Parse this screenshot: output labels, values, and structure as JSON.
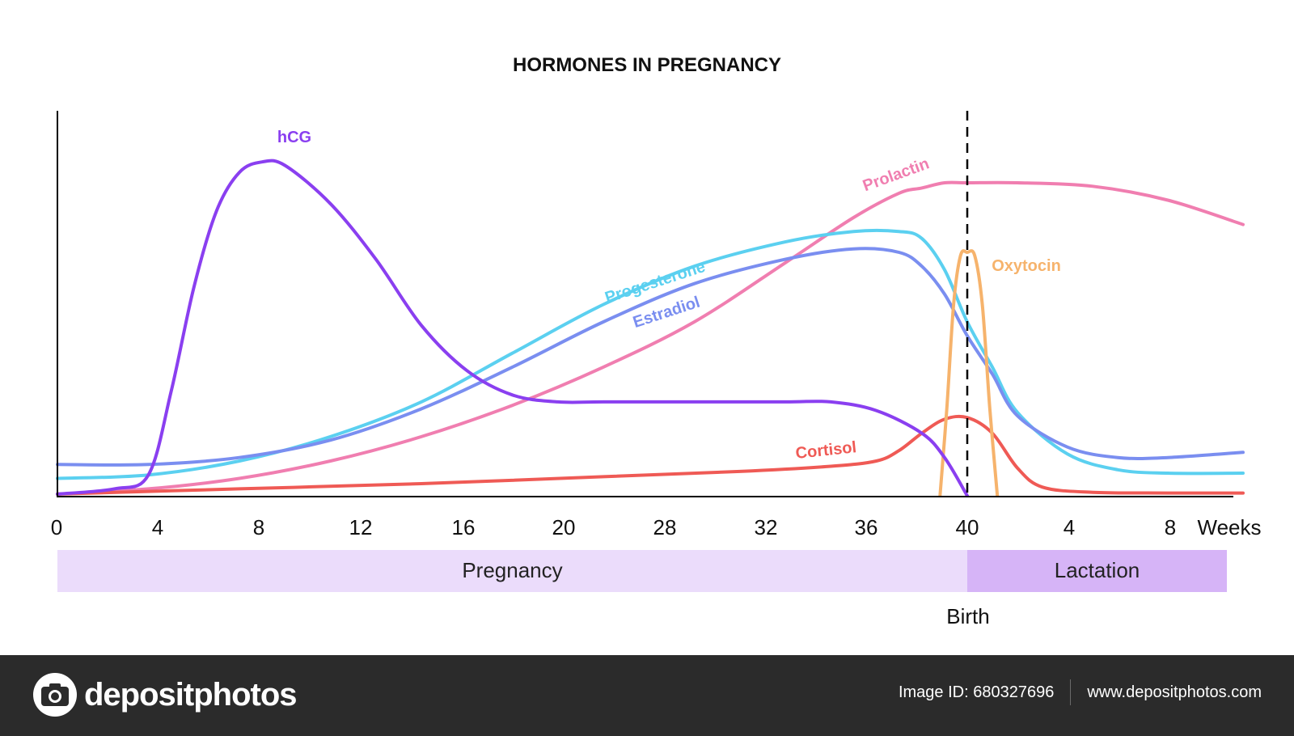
{
  "chart_data": {
    "type": "line",
    "title": "HORMONES IN PREGNANCY",
    "x_tick_labels": [
      "0",
      "4",
      "8",
      "12",
      "16",
      "20",
      "28",
      "32",
      "36",
      "40",
      "4",
      "8"
    ],
    "x_unit_label": "Weeks",
    "marker": {
      "label": "Birth",
      "x_week": 40,
      "style": "dashed"
    },
    "phases": [
      {
        "label": "Pregnancy",
        "from_week": 0,
        "to_week": 40,
        "color": "#ebdcfb"
      },
      {
        "label": "Lactation",
        "from_week": 40,
        "to_week": 51,
        "color": "#d6b4f7"
      }
    ],
    "y_axis": {
      "labels": "none",
      "range": [
        0,
        1
      ],
      "scale": "relative level"
    },
    "grid": false,
    "series": [
      {
        "name": "hCG",
        "color": "#8a3ff0",
        "points": [
          [
            0,
            0.005
          ],
          [
            2.5,
            0.02
          ],
          [
            4,
            0.06
          ],
          [
            5,
            0.3
          ],
          [
            6,
            0.6
          ],
          [
            7,
            0.82
          ],
          [
            8,
            0.93
          ],
          [
            9,
            0.96
          ],
          [
            10,
            0.95
          ],
          [
            12,
            0.84
          ],
          [
            14,
            0.68
          ],
          [
            16,
            0.49
          ],
          [
            18,
            0.36
          ],
          [
            20,
            0.29
          ],
          [
            22,
            0.27
          ],
          [
            24,
            0.27
          ],
          [
            28,
            0.27
          ],
          [
            32,
            0.27
          ],
          [
            34,
            0.27
          ],
          [
            36,
            0.245
          ],
          [
            38,
            0.18
          ],
          [
            39,
            0.11
          ],
          [
            40,
            0
          ]
        ]
      },
      {
        "name": "Progesterone",
        "color": "#5bd0f0",
        "points": [
          [
            0,
            0.05
          ],
          [
            4,
            0.06
          ],
          [
            8,
            0.1
          ],
          [
            12,
            0.17
          ],
          [
            16,
            0.27
          ],
          [
            20,
            0.41
          ],
          [
            24,
            0.55
          ],
          [
            28,
            0.66
          ],
          [
            32,
            0.73
          ],
          [
            35,
            0.76
          ],
          [
            37,
            0.76
          ],
          [
            38,
            0.74
          ],
          [
            39,
            0.65
          ],
          [
            40,
            0.5
          ],
          [
            41,
            0.37
          ],
          [
            42,
            0.24
          ],
          [
            44,
            0.12
          ],
          [
            46,
            0.075
          ],
          [
            48,
            0.065
          ],
          [
            51,
            0.065
          ]
        ]
      },
      {
        "name": "Estradiol",
        "color": "#7a8ef0",
        "points": [
          [
            0,
            0.09
          ],
          [
            4,
            0.09
          ],
          [
            8,
            0.11
          ],
          [
            12,
            0.16
          ],
          [
            16,
            0.25
          ],
          [
            20,
            0.37
          ],
          [
            24,
            0.5
          ],
          [
            28,
            0.61
          ],
          [
            32,
            0.68
          ],
          [
            35,
            0.71
          ],
          [
            37,
            0.7
          ],
          [
            38,
            0.66
          ],
          [
            39,
            0.58
          ],
          [
            40,
            0.46
          ],
          [
            41,
            0.35
          ],
          [
            42,
            0.23
          ],
          [
            44,
            0.14
          ],
          [
            46,
            0.11
          ],
          [
            48,
            0.11
          ],
          [
            51,
            0.125
          ]
        ]
      },
      {
        "name": "Prolactin",
        "color": "#f07eb0",
        "points": [
          [
            0,
            0.005
          ],
          [
            4,
            0.02
          ],
          [
            8,
            0.05
          ],
          [
            12,
            0.1
          ],
          [
            16,
            0.17
          ],
          [
            20,
            0.26
          ],
          [
            24,
            0.37
          ],
          [
            28,
            0.5
          ],
          [
            32,
            0.67
          ],
          [
            35,
            0.8
          ],
          [
            37,
            0.87
          ],
          [
            38,
            0.885
          ],
          [
            39,
            0.9
          ],
          [
            40,
            0.9
          ],
          [
            42,
            0.9
          ],
          [
            45,
            0.89
          ],
          [
            48,
            0.85
          ],
          [
            51,
            0.78
          ]
        ]
      },
      {
        "name": "Oxytocin",
        "color": "#f6b36c",
        "points": [
          [
            38.8,
            0
          ],
          [
            39.1,
            0.25
          ],
          [
            39.4,
            0.55
          ],
          [
            39.7,
            0.69
          ],
          [
            40,
            0.7
          ],
          [
            40.3,
            0.69
          ],
          [
            40.6,
            0.55
          ],
          [
            40.9,
            0.25
          ],
          [
            41.2,
            0
          ]
        ]
      },
      {
        "name": "Cortisol",
        "color": "#ef5a55",
        "points": [
          [
            0,
            0.005
          ],
          [
            8,
            0.02
          ],
          [
            16,
            0.035
          ],
          [
            24,
            0.055
          ],
          [
            30,
            0.07
          ],
          [
            34,
            0.085
          ],
          [
            36,
            0.1
          ],
          [
            37,
            0.13
          ],
          [
            38,
            0.18
          ],
          [
            39,
            0.22
          ],
          [
            40,
            0.225
          ],
          [
            41,
            0.18
          ],
          [
            42,
            0.08
          ],
          [
            43,
            0.025
          ],
          [
            45,
            0.01
          ],
          [
            48,
            0.008
          ],
          [
            51,
            0.008
          ]
        ]
      }
    ]
  },
  "footer": {
    "brand": "depositphotos",
    "image_id": "Image ID: 680327696",
    "website": "www.depositphotos.com"
  }
}
